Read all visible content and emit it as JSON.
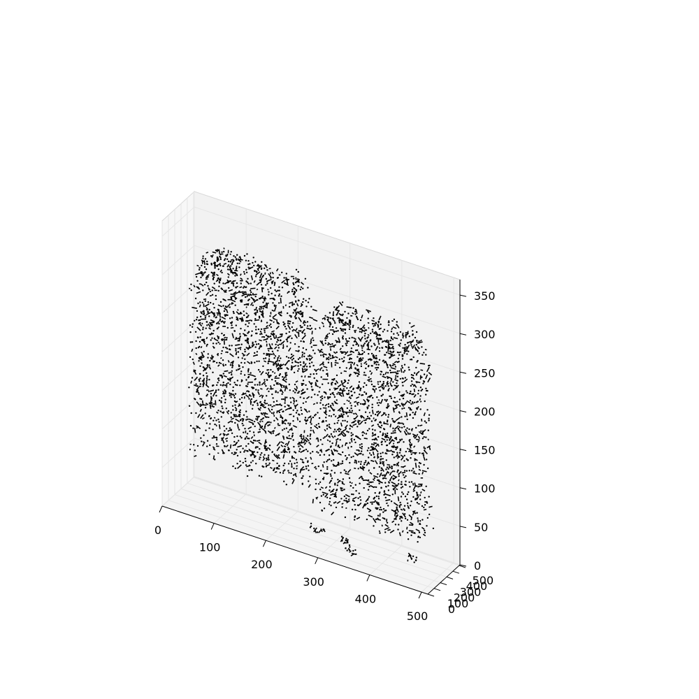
{
  "chart_data": {
    "type": "scatter",
    "projection": "3d",
    "title": "",
    "xlabel": "",
    "ylabel": "",
    "zlabel": "",
    "xlim": [
      0,
      512
    ],
    "ylim": [
      0,
      512
    ],
    "zlim": [
      0,
      370
    ],
    "x_ticks": [
      0,
      100,
      200,
      300,
      400,
      500
    ],
    "y_ticks": [
      0,
      100,
      200,
      300,
      400,
      500
    ],
    "z_ticks": [
      0,
      50,
      100,
      150,
      200,
      250,
      300,
      350
    ],
    "x_tick_labels": [
      "0",
      "100",
      "200",
      "300",
      "400",
      "500"
    ],
    "y_tick_labels": [
      "0",
      "100",
      "200",
      "300",
      "400",
      "500"
    ],
    "z_tick_labels": [
      "0",
      "50",
      "100",
      "150",
      "200",
      "250",
      "300",
      "350"
    ],
    "grid": true,
    "legend": "none",
    "colors": {
      "points": "#000000",
      "pane": "#f2f2f2",
      "pane_edge": "#d9d9d9",
      "grid": "#e6e6e6",
      "axis": "#000000"
    },
    "series": [
      {
        "description_of_data": "point cloud in two lobe-shaped clusters plus a few small clusters near z=0",
        "clusters": [
          {
            "x_range": [
              30,
              260
            ],
            "y_range": [
              150,
              360
            ],
            "z_range": [
              60,
              330
            ]
          },
          {
            "x_range": [
              270,
              480
            ],
            "y_range": [
              150,
              360
            ],
            "z_range": [
              40,
              310
            ]
          },
          {
            "x_range": [
              245,
              275
            ],
            "y_range": [
              310,
              335
            ],
            "z_range": [
              0,
              8
            ]
          },
          {
            "x_range": [
              310,
              330
            ],
            "y_range": [
              280,
              300
            ],
            "z_range": [
              0,
              8
            ]
          },
          {
            "x_range": [
              330,
              350
            ],
            "y_range": [
              180,
              200
            ],
            "z_range": [
              0,
              8
            ]
          },
          {
            "x_range": [
              430,
              450
            ],
            "y_range": [
              340,
              360
            ],
            "z_range": [
              0,
              8
            ]
          }
        ]
      }
    ]
  }
}
